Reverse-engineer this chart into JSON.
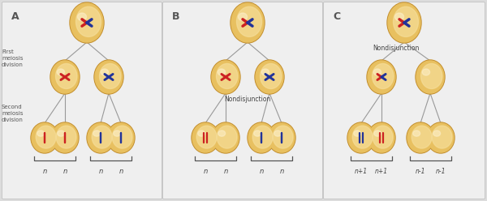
{
  "background_color": "#dcdcdc",
  "panel_color": "#efefef",
  "cell_outer": "#dda830",
  "cell_mid": "#e8c060",
  "cell_inner": "#f5dd99",
  "cell_highlight": "#fdf0cc",
  "line_color": "#999999",
  "red_color": "#cc2222",
  "blue_color": "#223399",
  "panel_A_label": "A",
  "panel_B_label": "B",
  "panel_C_label": "C",
  "label_first": "First\nmeiosis\ndivision",
  "label_second": "Second\nmeiosis\ndivision",
  "label_nondisjunction": "Nondisjunction",
  "label_n": "n",
  "labels_C": [
    "n+1",
    "n+1",
    "n-1",
    "n-1"
  ],
  "labels_B": [
    "n",
    "n",
    "n",
    "n"
  ],
  "labels_A": [
    "n",
    "n",
    "n",
    "n"
  ]
}
